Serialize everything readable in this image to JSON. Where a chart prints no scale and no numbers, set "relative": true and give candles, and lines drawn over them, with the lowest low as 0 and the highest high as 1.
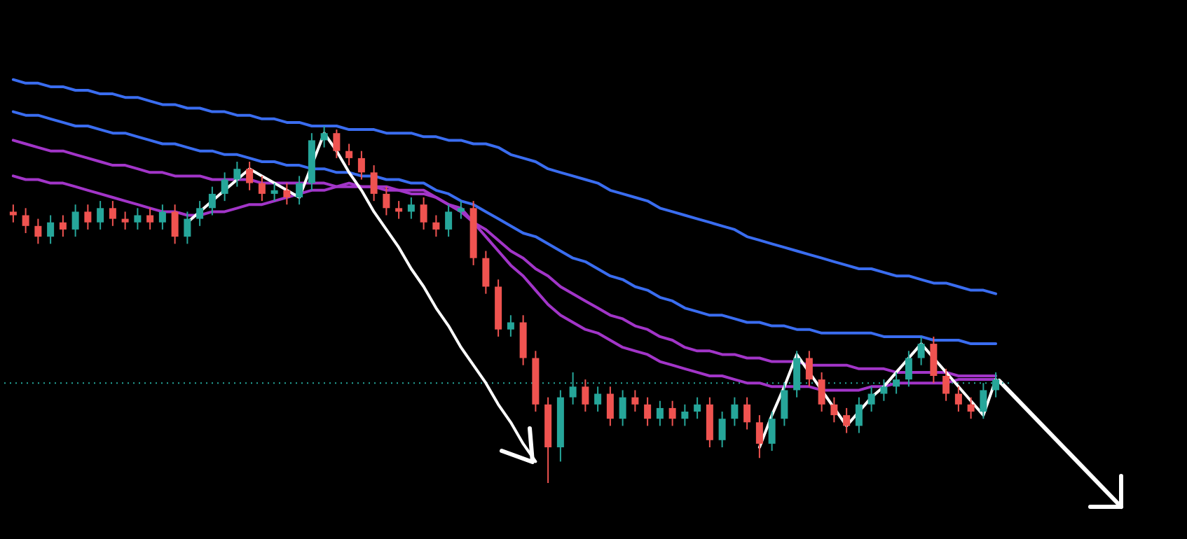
{
  "chart_data": {
    "type": "candlestick",
    "relative": true,
    "categories": [
      null,
      null,
      null,
      null,
      null,
      null,
      null,
      null,
      null,
      null,
      null,
      null,
      null,
      null,
      null,
      null,
      null,
      null,
      null,
      null,
      null,
      null,
      null,
      null,
      null,
      null,
      null,
      null,
      null,
      null,
      null,
      null,
      null,
      null,
      null,
      null,
      null,
      null,
      null,
      null,
      null,
      null,
      null,
      null,
      null,
      null,
      null,
      null,
      null,
      null,
      null,
      null,
      null,
      null,
      null,
      null,
      null,
      null,
      null,
      null,
      null,
      null,
      null,
      null,
      null,
      null,
      null,
      null,
      null,
      null,
      null,
      null,
      null,
      null,
      null,
      null,
      null,
      null,
      null,
      null
    ],
    "ohlc": [
      [
        0.76,
        0.78,
        0.73,
        0.75
      ],
      [
        0.75,
        0.77,
        0.7,
        0.72
      ],
      [
        0.72,
        0.74,
        0.67,
        0.69
      ],
      [
        0.69,
        0.75,
        0.67,
        0.73
      ],
      [
        0.73,
        0.75,
        0.69,
        0.71
      ],
      [
        0.71,
        0.78,
        0.69,
        0.76
      ],
      [
        0.76,
        0.78,
        0.71,
        0.73
      ],
      [
        0.73,
        0.79,
        0.71,
        0.77
      ],
      [
        0.77,
        0.79,
        0.72,
        0.74
      ],
      [
        0.74,
        0.76,
        0.71,
        0.73
      ],
      [
        0.73,
        0.77,
        0.71,
        0.75
      ],
      [
        0.75,
        0.77,
        0.71,
        0.73
      ],
      [
        0.73,
        0.78,
        0.71,
        0.76
      ],
      [
        0.76,
        0.78,
        0.67,
        0.69
      ],
      [
        0.69,
        0.76,
        0.67,
        0.74
      ],
      [
        0.74,
        0.79,
        0.72,
        0.77
      ],
      [
        0.77,
        0.83,
        0.75,
        0.81
      ],
      [
        0.81,
        0.87,
        0.79,
        0.85
      ],
      [
        0.85,
        0.9,
        0.83,
        0.88
      ],
      [
        0.88,
        0.9,
        0.82,
        0.84
      ],
      [
        0.84,
        0.86,
        0.79,
        0.81
      ],
      [
        0.81,
        0.84,
        0.79,
        0.82
      ],
      [
        0.82,
        0.84,
        0.78,
        0.8
      ],
      [
        0.8,
        0.86,
        0.78,
        0.84
      ],
      [
        0.84,
        0.98,
        0.82,
        0.96
      ],
      [
        0.96,
        1,
        0.94,
        0.98
      ],
      [
        0.98,
        0.99,
        0.91,
        0.93
      ],
      [
        0.93,
        0.95,
        0.89,
        0.91
      ],
      [
        0.91,
        0.93,
        0.85,
        0.87
      ],
      [
        0.87,
        0.89,
        0.79,
        0.81
      ],
      [
        0.81,
        0.83,
        0.75,
        0.77
      ],
      [
        0.77,
        0.79,
        0.74,
        0.76
      ],
      [
        0.76,
        0.8,
        0.74,
        0.78
      ],
      [
        0.78,
        0.8,
        0.71,
        0.73
      ],
      [
        0.73,
        0.75,
        0.69,
        0.71
      ],
      [
        0.71,
        0.78,
        0.69,
        0.76
      ],
      [
        0.76,
        0.79,
        0.74,
        0.77
      ],
      [
        0.77,
        0.79,
        0.61,
        0.63
      ],
      [
        0.63,
        0.65,
        0.53,
        0.55
      ],
      [
        0.55,
        0.57,
        0.41,
        0.43
      ],
      [
        0.43,
        0.47,
        0.41,
        0.45
      ],
      [
        0.45,
        0.47,
        0.33,
        0.35
      ],
      [
        0.35,
        0.37,
        0.2,
        0.22
      ],
      [
        0.22,
        0.24,
        0,
        0.1
      ],
      [
        0.1,
        0.26,
        0.06,
        0.24
      ],
      [
        0.24,
        0.31,
        0.22,
        0.27
      ],
      [
        0.27,
        0.29,
        0.2,
        0.22
      ],
      [
        0.22,
        0.27,
        0.2,
        0.25
      ],
      [
        0.25,
        0.27,
        0.16,
        0.18
      ],
      [
        0.18,
        0.26,
        0.16,
        0.24
      ],
      [
        0.24,
        0.26,
        0.2,
        0.22
      ],
      [
        0.22,
        0.24,
        0.16,
        0.18
      ],
      [
        0.18,
        0.23,
        0.16,
        0.21
      ],
      [
        0.21,
        0.23,
        0.16,
        0.18
      ],
      [
        0.18,
        0.22,
        0.16,
        0.2
      ],
      [
        0.2,
        0.24,
        0.18,
        0.22
      ],
      [
        0.22,
        0.24,
        0.1,
        0.12
      ],
      [
        0.12,
        0.2,
        0.1,
        0.18
      ],
      [
        0.18,
        0.24,
        0.16,
        0.22
      ],
      [
        0.22,
        0.24,
        0.15,
        0.17
      ],
      [
        0.17,
        0.19,
        0.07,
        0.11
      ],
      [
        0.11,
        0.2,
        0.09,
        0.18
      ],
      [
        0.18,
        0.28,
        0.16,
        0.26
      ],
      [
        0.26,
        0.37,
        0.24,
        0.35
      ],
      [
        0.35,
        0.37,
        0.27,
        0.29
      ],
      [
        0.29,
        0.31,
        0.2,
        0.22
      ],
      [
        0.22,
        0.24,
        0.17,
        0.19
      ],
      [
        0.19,
        0.21,
        0.14,
        0.16
      ],
      [
        0.16,
        0.24,
        0.14,
        0.22
      ],
      [
        0.22,
        0.27,
        0.2,
        0.25
      ],
      [
        0.25,
        0.29,
        0.23,
        0.27
      ],
      [
        0.27,
        0.31,
        0.25,
        0.29
      ],
      [
        0.29,
        0.37,
        0.27,
        0.35
      ],
      [
        0.35,
        0.41,
        0.33,
        0.39
      ],
      [
        0.39,
        0.41,
        0.28,
        0.3
      ],
      [
        0.3,
        0.32,
        0.23,
        0.25
      ],
      [
        0.25,
        0.27,
        0.2,
        0.22
      ],
      [
        0.22,
        0.24,
        0.18,
        0.2
      ],
      [
        0.2,
        0.28,
        0.18,
        0.26
      ],
      [
        0.26,
        0.31,
        0.24,
        0.29
      ]
    ],
    "series": [
      {
        "type": "line",
        "color": "#3a6df0",
        "values": [
          1.13,
          1.12,
          1.12,
          1.11,
          1.11,
          1.1,
          1.1,
          1.09,
          1.09,
          1.08,
          1.08,
          1.07,
          1.06,
          1.06,
          1.05,
          1.05,
          1.04,
          1.04,
          1.03,
          1.03,
          1.02,
          1.02,
          1.01,
          1.01,
          1,
          1,
          1,
          0.99,
          0.99,
          0.99,
          0.98,
          0.98,
          0.98,
          0.97,
          0.97,
          0.96,
          0.96,
          0.95,
          0.95,
          0.94,
          0.92,
          0.91,
          0.9,
          0.88,
          0.87,
          0.86,
          0.85,
          0.84,
          0.82,
          0.81,
          0.8,
          0.79,
          0.77,
          0.76,
          0.75,
          0.74,
          0.73,
          0.72,
          0.71,
          0.69,
          0.68,
          0.67,
          0.66,
          0.65,
          0.64,
          0.63,
          0.62,
          0.61,
          0.6,
          0.6,
          0.59,
          0.58,
          0.58,
          0.57,
          0.56,
          0.56,
          0.55,
          0.54,
          0.54,
          0.53
        ]
      },
      {
        "type": "line",
        "color": "#3a6df0",
        "values": [
          1.04,
          1.03,
          1.03,
          1.02,
          1.01,
          1,
          1,
          0.99,
          0.98,
          0.98,
          0.97,
          0.96,
          0.95,
          0.95,
          0.94,
          0.93,
          0.93,
          0.92,
          0.92,
          0.91,
          0.9,
          0.9,
          0.89,
          0.89,
          0.88,
          0.88,
          0.87,
          0.87,
          0.86,
          0.86,
          0.85,
          0.85,
          0.84,
          0.84,
          0.82,
          0.81,
          0.79,
          0.78,
          0.76,
          0.74,
          0.72,
          0.7,
          0.69,
          0.67,
          0.65,
          0.63,
          0.62,
          0.6,
          0.58,
          0.57,
          0.55,
          0.54,
          0.52,
          0.51,
          0.49,
          0.48,
          0.47,
          0.47,
          0.46,
          0.45,
          0.45,
          0.44,
          0.44,
          0.43,
          0.43,
          0.42,
          0.42,
          0.42,
          0.42,
          0.42,
          0.41,
          0.41,
          0.41,
          0.41,
          0.4,
          0.4,
          0.4,
          0.39,
          0.39,
          0.39
        ]
      },
      {
        "type": "line",
        "color": "#a235c8",
        "values": [
          0.96,
          0.95,
          0.94,
          0.93,
          0.93,
          0.92,
          0.91,
          0.9,
          0.89,
          0.89,
          0.88,
          0.87,
          0.87,
          0.86,
          0.86,
          0.86,
          0.85,
          0.85,
          0.85,
          0.85,
          0.84,
          0.84,
          0.84,
          0.84,
          0.84,
          0.84,
          0.83,
          0.83,
          0.83,
          0.83,
          0.83,
          0.82,
          0.82,
          0.82,
          0.8,
          0.78,
          0.76,
          0.73,
          0.71,
          0.68,
          0.65,
          0.63,
          0.6,
          0.58,
          0.55,
          0.53,
          0.51,
          0.49,
          0.47,
          0.46,
          0.44,
          0.43,
          0.41,
          0.4,
          0.38,
          0.37,
          0.37,
          0.36,
          0.36,
          0.35,
          0.35,
          0.34,
          0.34,
          0.34,
          0.33,
          0.33,
          0.33,
          0.33,
          0.32,
          0.32,
          0.32,
          0.31,
          0.31,
          0.31,
          0.31,
          0.31,
          0.3,
          0.3,
          0.3,
          0.3
        ]
      },
      {
        "type": "line",
        "color": "#a235c8",
        "values": [
          0.86,
          0.85,
          0.85,
          0.84,
          0.84,
          0.83,
          0.82,
          0.81,
          0.8,
          0.79,
          0.78,
          0.77,
          0.76,
          0.76,
          0.75,
          0.75,
          0.76,
          0.76,
          0.77,
          0.78,
          0.78,
          0.79,
          0.8,
          0.81,
          0.82,
          0.82,
          0.83,
          0.84,
          0.83,
          0.83,
          0.82,
          0.82,
          0.81,
          0.81,
          0.8,
          0.78,
          0.77,
          0.73,
          0.69,
          0.65,
          0.61,
          0.58,
          0.54,
          0.5,
          0.47,
          0.45,
          0.43,
          0.42,
          0.4,
          0.38,
          0.37,
          0.36,
          0.34,
          0.33,
          0.32,
          0.31,
          0.3,
          0.3,
          0.29,
          0.28,
          0.28,
          0.27,
          0.27,
          0.27,
          0.27,
          0.26,
          0.26,
          0.26,
          0.26,
          0.27,
          0.27,
          0.28,
          0.28,
          0.28,
          0.28,
          0.28,
          0.29,
          0.29,
          0.29,
          0.29
        ]
      },
      {
        "type": "line",
        "color": "#ffffff",
        "values": [
          null,
          null,
          null,
          null,
          null,
          null,
          null,
          null,
          null,
          null,
          null,
          null,
          null,
          null,
          0.73,
          0.76,
          0.79,
          0.82,
          0.85,
          0.88,
          0.86,
          0.84,
          0.82,
          0.8,
          0.89,
          0.98,
          0.93,
          0.87,
          0.82,
          0.76,
          0.71,
          0.66,
          0.6,
          0.55,
          0.49,
          0.44,
          0.38,
          0.33,
          0.28,
          0.22,
          0.17,
          0.11,
          0.06,
          null,
          null,
          null,
          null,
          null,
          null,
          null,
          null,
          null,
          null,
          null,
          null,
          null,
          null,
          null,
          null,
          null,
          null,
          null,
          null,
          null,
          null,
          null,
          null,
          null,
          null,
          null,
          null,
          null,
          null,
          null,
          null,
          null,
          null,
          null,
          null,
          null
        ]
      },
      {
        "type": "line",
        "color": "#ffffff",
        "values": [
          null,
          null,
          null,
          null,
          null,
          null,
          null,
          null,
          null,
          null,
          null,
          null,
          null,
          null,
          null,
          null,
          null,
          null,
          null,
          null,
          null,
          null,
          null,
          null,
          null,
          null,
          null,
          null,
          null,
          null,
          null,
          null,
          null,
          null,
          null,
          null,
          null,
          null,
          null,
          null,
          null,
          null,
          null,
          null,
          null,
          null,
          null,
          null,
          null,
          null,
          null,
          null,
          null,
          null,
          null,
          null,
          null,
          null,
          null,
          null,
          0.1,
          0.19,
          0.27,
          0.36,
          0.31,
          0.26,
          0.21,
          0.16,
          0.2,
          0.24,
          0.27,
          0.31,
          0.35,
          0.39,
          0.35,
          0.31,
          0.27,
          0.23,
          0.19,
          0.29
        ]
      }
    ],
    "ref_lines": [
      {
        "axis": "y",
        "value": 0.28,
        "color": "#26a69a",
        "line_style": "dotted"
      }
    ]
  }
}
